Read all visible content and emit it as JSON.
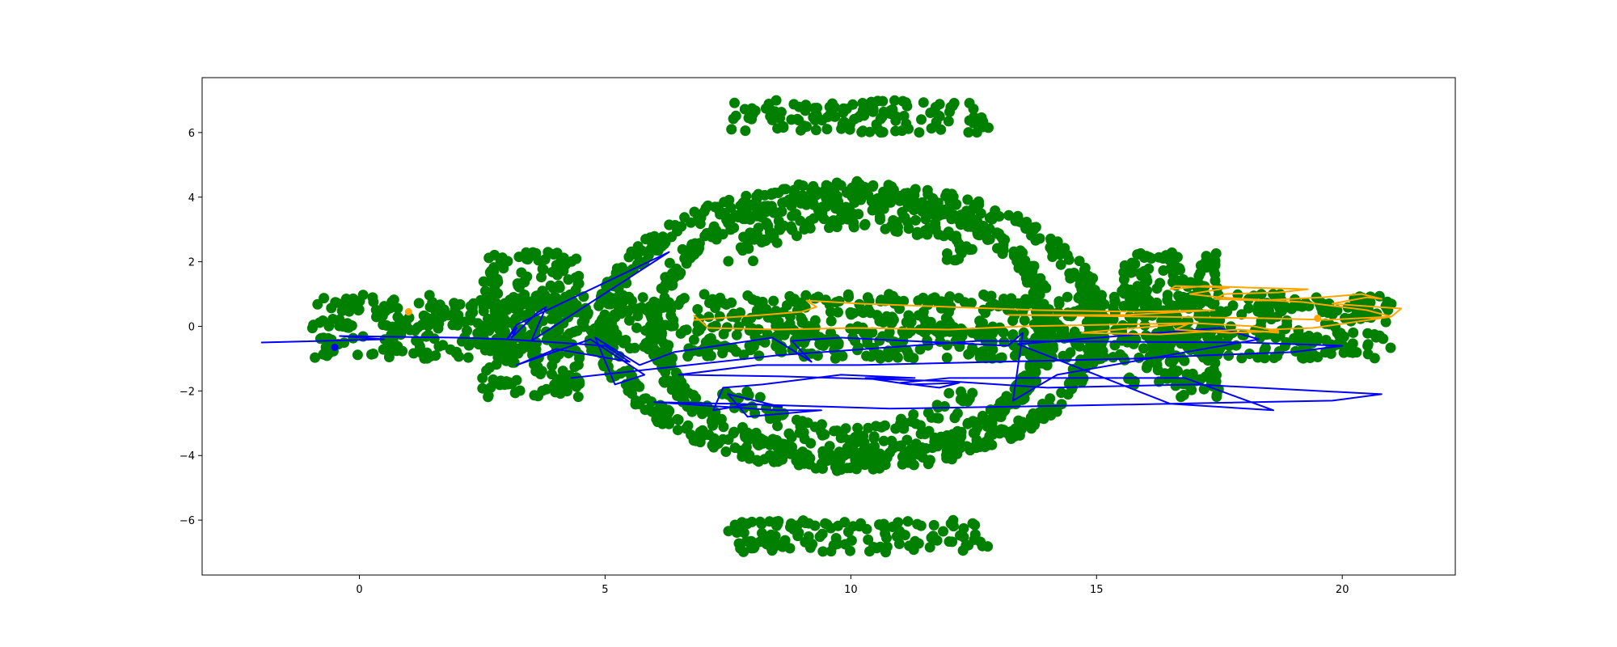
{
  "chart_data": {
    "type": "scatter",
    "title": "",
    "xlabel": "",
    "ylabel": "",
    "xlim": [
      -3.2,
      22.3
    ],
    "ylim": [
      -7.7,
      7.7
    ],
    "grid": false,
    "x_ticks": [
      0,
      5,
      10,
      15,
      20
    ],
    "x_tick_labels": [
      "0",
      "5",
      "10",
      "15",
      "20"
    ],
    "y_ticks": [
      -6,
      -4,
      -2,
      0,
      2,
      4,
      6
    ],
    "y_tick_labels": [
      "−6",
      "−4",
      "−2",
      "0",
      "2",
      "4",
      "6"
    ],
    "colors": {
      "scatter": "#008000",
      "path_a": "#0000ff",
      "path_b": "#ffa500"
    },
    "series": [
      {
        "type": "scatter",
        "color": "#008000",
        "shape": "dense band of points shaped like a winged ellipse",
        "bands": [
          {
            "x": [
              -1.0,
              21.0
            ],
            "y": [
              -1.0,
              1.0
            ]
          },
          {
            "x": [
              2.5,
              4.5
            ],
            "y": [
              -2.2,
              2.3
            ]
          },
          {
            "x": [
              15.5,
              17.5
            ],
            "y": [
              -2.2,
              2.3
            ]
          },
          {
            "x": [
              7.5,
              12.8
            ],
            "y": [
              6.0,
              7.0
            ]
          },
          {
            "x": [
              7.5,
              12.8
            ],
            "y": [
              -7.0,
              -6.0
            ]
          }
        ],
        "rings": [
          {
            "cx": 10.0,
            "cy": 0,
            "rx": 4.0,
            "ry": 4.0
          },
          {
            "cx": 10.0,
            "cy": 0,
            "rx": 5.0,
            "ry": 4.3
          }
        ]
      },
      {
        "type": "line",
        "color": "#0000ff",
        "marker_start": [
          -0.5,
          -0.65
        ],
        "x": [
          -2.0,
          0.5,
          -0.4,
          2.0,
          3.0,
          3.2,
          3.1,
          3.6,
          3.8,
          3.5,
          6.3,
          3.2,
          3.0,
          5.0,
          5.5,
          4.0,
          3.2,
          4.7,
          5.8,
          5.2,
          4.8,
          5.7,
          6.4,
          8.4,
          9.2,
          8.8,
          9.8,
          13.2,
          13.5,
          13.3,
          14.2,
          18.3,
          17.5,
          13.4,
          16.5,
          18.6,
          16.8,
          12.0,
          11.0,
          11.8,
          12.2,
          11.2,
          10.3,
          11.3,
          9.8,
          8.2,
          7.4,
          7.2,
          8.0,
          8.6,
          7.5,
          7.9,
          9.4,
          8.5,
          6.0,
          7.6,
          10.8,
          12.8,
          16.5,
          19.8,
          20.8,
          17.0,
          14.0,
          12.0,
          8.6,
          6.5,
          8.1,
          10.2,
          13.0,
          15.8,
          17.2,
          19.0,
          20.0,
          18.0,
          12.6,
          8.5,
          4.3
        ],
        "y": [
          -0.5,
          -0.4,
          -0.3,
          -0.35,
          -0.4,
          -0.05,
          -0.35,
          0.4,
          0.6,
          -0.45,
          2.3,
          0.05,
          -0.4,
          -0.6,
          -1.1,
          -0.7,
          -1.2,
          -0.4,
          -1.5,
          -1.8,
          -0.35,
          -1.2,
          -0.8,
          -0.35,
          -1.1,
          -0.45,
          -0.35,
          -0.6,
          -0.2,
          -2.3,
          -1.5,
          -0.4,
          -0.05,
          -0.55,
          -2.4,
          -2.6,
          -1.6,
          -1.6,
          -1.75,
          -1.9,
          -1.75,
          -1.8,
          -1.6,
          -1.6,
          -1.5,
          -1.8,
          -1.9,
          -2.6,
          -2.4,
          -2.5,
          -2.1,
          -2.8,
          -2.6,
          -2.6,
          -2.35,
          -2.4,
          -2.55,
          -2.5,
          -2.4,
          -2.3,
          -2.1,
          -1.8,
          -1.9,
          -1.7,
          -1.55,
          -1.5,
          -1.2,
          -1.2,
          -1.1,
          -1.0,
          -0.9,
          -0.8,
          -0.6,
          -0.5,
          -0.45,
          -0.9,
          -1.6
        ]
      },
      {
        "type": "line",
        "color": "#ffa500",
        "marker_start": [
          1.0,
          0.45
        ],
        "marker_end": [
          19.5,
          0.25
        ],
        "x": [
          6.8,
          8.2,
          9.0,
          9.3,
          9.1,
          10.2,
          12.0,
          13.8,
          15.8,
          17.4,
          15.6,
          13.2,
          16.1,
          18.4,
          19.7,
          21.0,
          21.2,
          20.7,
          19.8,
          20.5,
          20.8,
          20.4,
          19.6,
          18.3,
          17.4,
          17.6,
          18.7,
          19.3,
          18.1,
          17.2,
          16.5,
          16.6,
          17.7,
          16.9,
          17.5,
          18.0,
          19.2,
          20.5,
          21.0,
          20.1,
          19.4,
          18.5,
          18.7,
          17.9,
          16.3,
          14.7,
          15.8,
          17.0,
          18.2,
          18.7,
          17.7,
          16.6,
          16.9,
          15.2,
          13.5,
          12.0,
          10.1,
          8.5,
          7.1,
          6.8
        ],
        "y": [
          0.2,
          0.35,
          0.45,
          0.6,
          0.8,
          0.7,
          0.6,
          0.5,
          0.45,
          0.5,
          0.35,
          0.35,
          0.3,
          0.25,
          0.2,
          0.3,
          0.55,
          0.6,
          0.7,
          0.9,
          0.85,
          1.0,
          0.9,
          0.8,
          0.85,
          1.0,
          1.05,
          1.15,
          1.2,
          1.25,
          1.15,
          1.25,
          1.2,
          1.0,
          0.9,
          0.85,
          0.75,
          0.5,
          0.3,
          0.1,
          -0.05,
          -0.1,
          -0.2,
          -0.1,
          -0.25,
          -0.2,
          -0.05,
          0.1,
          0.0,
          -0.15,
          -0.2,
          -0.1,
          0.1,
          0.05,
          0.0,
          -0.1,
          -0.05,
          -0.1,
          -0.05,
          0.35
        ]
      }
    ]
  }
}
